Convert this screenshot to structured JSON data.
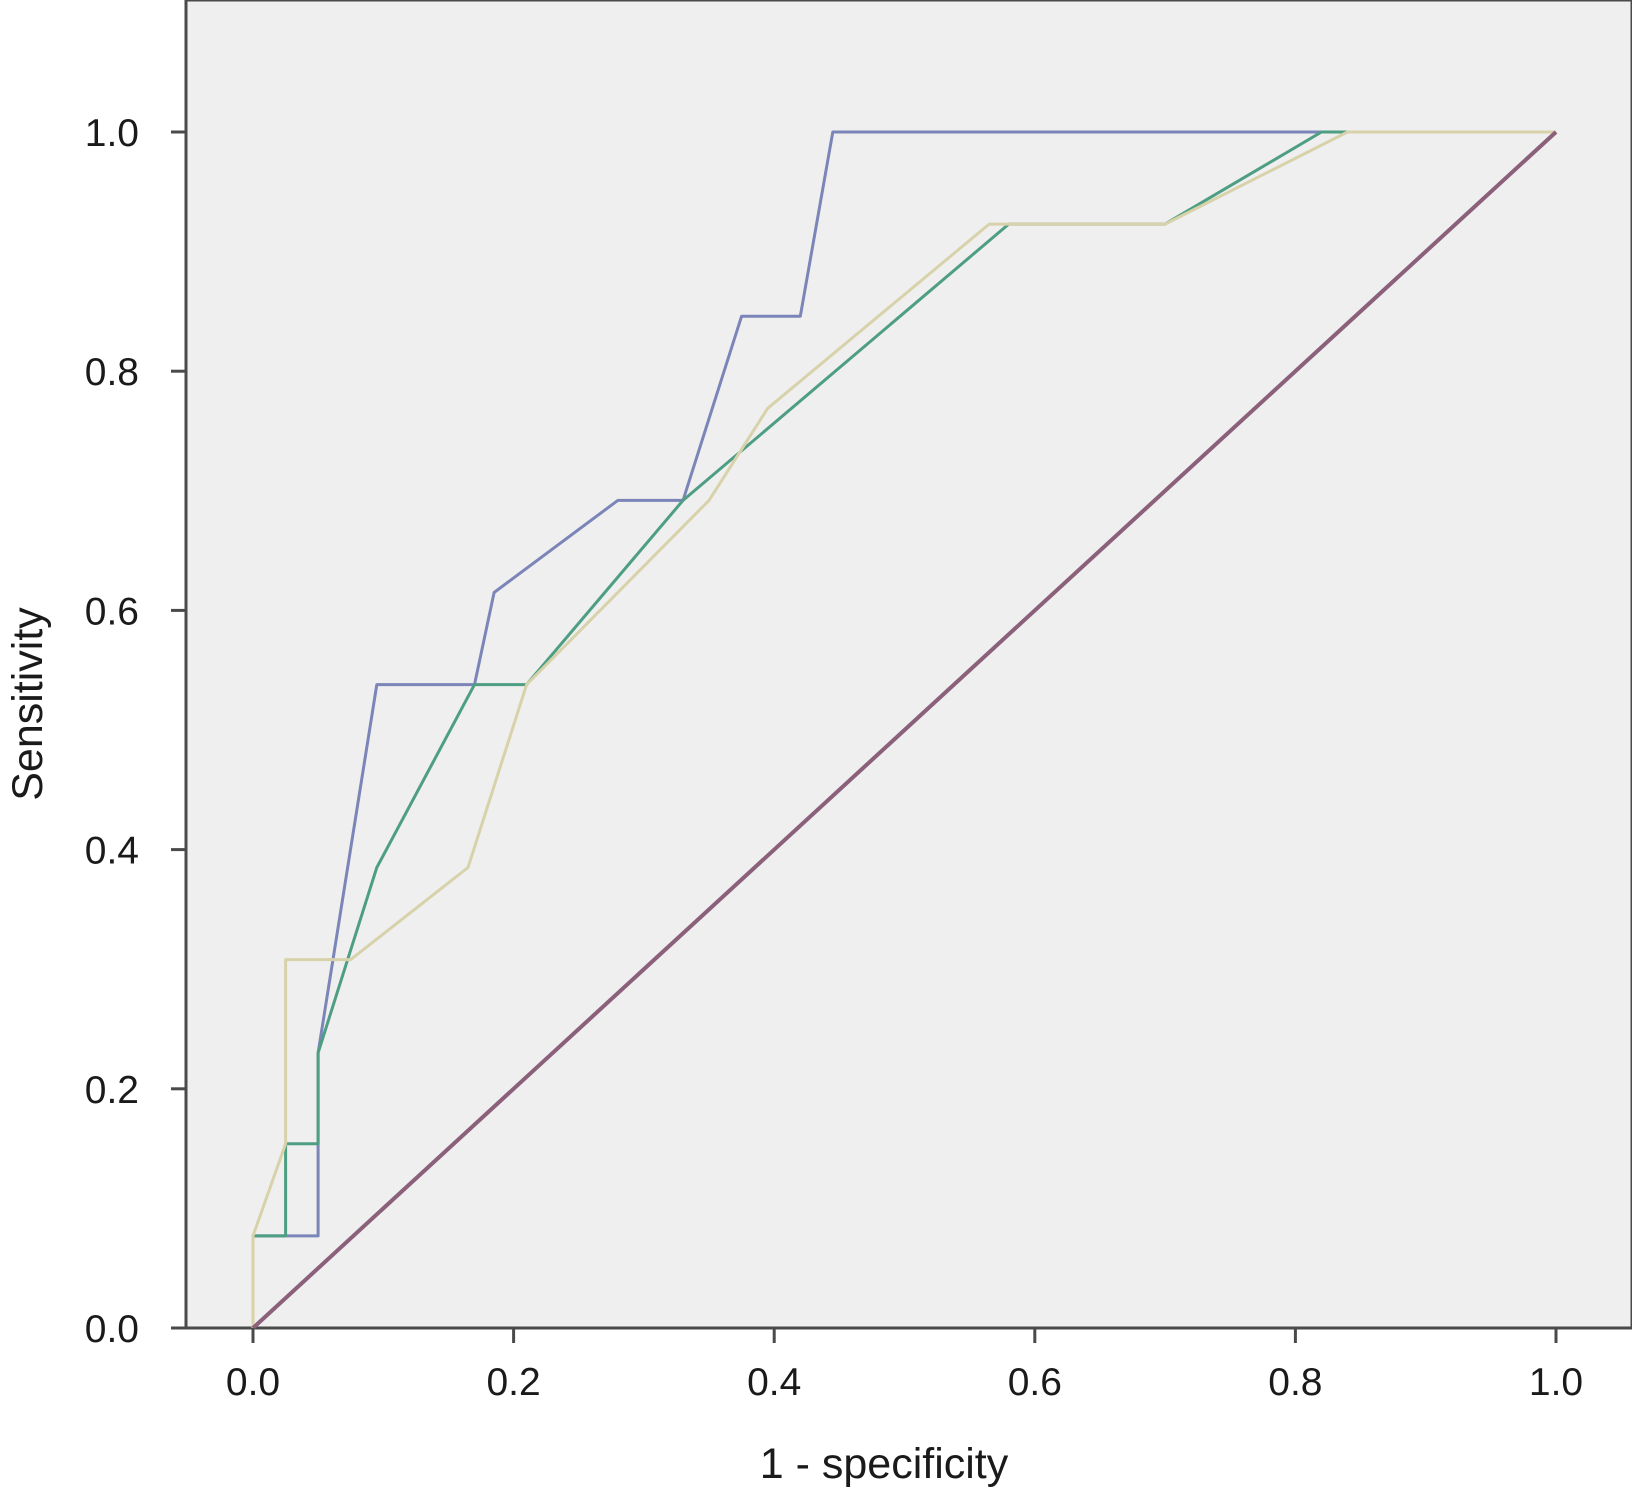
{
  "chart_data": {
    "type": "line",
    "title": "",
    "xlabel": "1 - specificity",
    "ylabel": "Sensitivity",
    "xlim": [
      -0.05,
      1.05
    ],
    "ylim": [
      0.0,
      1.1
    ],
    "x_ticks": [
      "0.0",
      "0.2",
      "0.4",
      "0.6",
      "0.8",
      "1.0"
    ],
    "y_ticks": [
      "0.0",
      "0.2",
      "0.4",
      "0.6",
      "0.8",
      "1.0"
    ],
    "grid": false,
    "legend": "none",
    "plot_background": "#efefef",
    "series": [
      {
        "color": "#7b85b8",
        "x": [
          0.0,
          0.0,
          0.05,
          0.05,
          0.095,
          0.095,
          0.17,
          0.185,
          0.28,
          0.33,
          0.375,
          0.42,
          0.445,
          0.81,
          0.84,
          1.0
        ],
        "y": [
          0.0,
          0.077,
          0.077,
          0.23,
          0.538,
          0.538,
          0.538,
          0.615,
          0.692,
          0.692,
          0.846,
          0.846,
          1.0,
          1.0,
          1.0,
          1.0
        ]
      },
      {
        "color": "#4e9e83",
        "x": [
          0.0,
          0.0,
          0.025,
          0.025,
          0.05,
          0.05,
          0.095,
          0.17,
          0.21,
          0.33,
          0.58,
          0.58,
          0.68,
          0.7,
          0.82,
          1.0
        ],
        "y": [
          0.0,
          0.077,
          0.077,
          0.154,
          0.154,
          0.23,
          0.385,
          0.538,
          0.538,
          0.692,
          0.923,
          0.923,
          0.923,
          0.923,
          1.0,
          1.0
        ]
      },
      {
        "color": "#d8d2aa",
        "x": [
          0.0,
          0.0,
          0.025,
          0.025,
          0.075,
          0.165,
          0.21,
          0.35,
          0.395,
          0.565,
          0.58,
          0.68,
          0.7,
          0.84,
          1.0
        ],
        "y": [
          0.0,
          0.077,
          0.154,
          0.308,
          0.308,
          0.385,
          0.538,
          0.692,
          0.769,
          0.923,
          0.923,
          0.923,
          0.923,
          1.0,
          1.0
        ]
      },
      {
        "color": "#8a607a",
        "x": [
          0.0,
          1.0
        ],
        "y": [
          0.0,
          1.0
        ]
      }
    ]
  }
}
